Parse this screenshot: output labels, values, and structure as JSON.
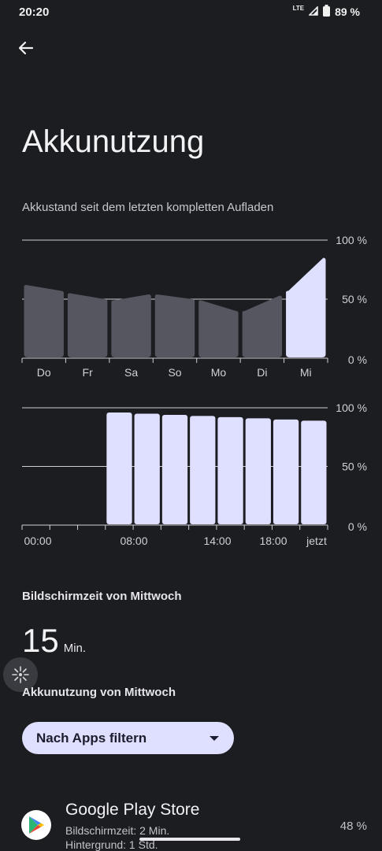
{
  "status": {
    "time": "20:20",
    "network": "LTE",
    "battery": "89 %"
  },
  "page": {
    "title": "Akkunutzung",
    "subtitle": "Akkustand seit dem letzten kompletten Aufladen"
  },
  "chart_data": [
    {
      "type": "area",
      "title": "",
      "y_ticks": [
        "100 %",
        "50 %",
        "0 %"
      ],
      "ylim": [
        0,
        100
      ],
      "categories": [
        "Do",
        "Fr",
        "Sa",
        "So",
        "Mo",
        "Di",
        "Mi"
      ],
      "highlight": "Mi",
      "values": [
        [
          62,
          57
        ],
        [
          55,
          50
        ],
        [
          49,
          54
        ],
        [
          54,
          50
        ],
        [
          49,
          40
        ],
        [
          40,
          53
        ],
        [
          57,
          85
        ]
      ],
      "grid": true
    },
    {
      "type": "bar",
      "title": "",
      "y_ticks": [
        "100 %",
        "50 %",
        "0 %"
      ],
      "ylim": [
        0,
        100
      ],
      "x_labels": [
        "00:00",
        "08:00",
        "14:00",
        "18:00",
        "jetzt"
      ],
      "values": [
        0,
        0,
        0,
        96,
        95,
        94,
        93,
        92,
        91,
        90,
        89
      ],
      "grid": true
    }
  ],
  "screen_time": {
    "label": "Bildschirmzeit von Mittwoch",
    "value": "15",
    "unit": "Min."
  },
  "usage": {
    "label": "Akkunutzung von Mittwoch"
  },
  "filter": {
    "label": "Nach Apps filtern"
  },
  "apps": [
    {
      "name": "Google Play Store",
      "screen_time": "Bildschirmzeit: 2 Min.",
      "background": "Hintergrund: 1 Std.",
      "percent": "48 %"
    }
  ],
  "colors": {
    "background": "#1c1d21",
    "accent": "#dfe0ff",
    "inactive_bar": "#55565f",
    "grid": "#d0d0d4"
  }
}
